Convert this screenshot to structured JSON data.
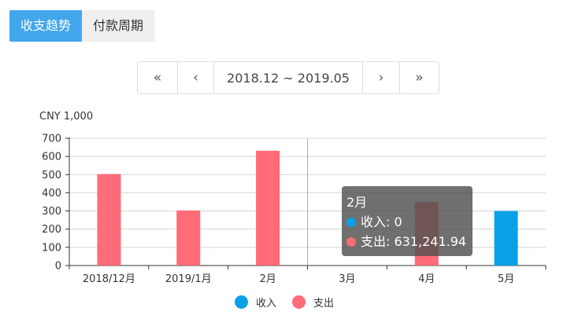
{
  "tabs": [
    {
      "label": "收支趋势",
      "active": true
    },
    {
      "label": "付款周期",
      "active": false
    }
  ],
  "pager": {
    "first": "«",
    "prev": "‹",
    "range": "2018.12 ~ 2019.05",
    "next": "›",
    "last": "»"
  },
  "chart_data": {
    "type": "bar",
    "unit_label": "CNY 1,000",
    "categories": [
      "2018/12月",
      "2019/1月",
      "2月",
      "3月",
      "4月",
      "5月"
    ],
    "series": [
      {
        "name": "收入",
        "color": "#0aa0e8",
        "values": [
          0,
          0,
          0,
          0,
          0,
          300
        ]
      },
      {
        "name": "支出",
        "color": "#ff6b77",
        "values": [
          503,
          303,
          631.24194,
          0,
          350,
          0
        ]
      }
    ],
    "ylim": [
      0,
      700
    ],
    "yticks": [
      0,
      100,
      200,
      300,
      400,
      500,
      600,
      700
    ],
    "grid": true,
    "legend_position": "bottom",
    "hover_category_index": 2,
    "tooltip": {
      "title": "2月",
      "rows": [
        {
          "label": "收入: 0",
          "color": "#0aa0e8"
        },
        {
          "label": "支出: 631,241.94",
          "color": "#ff6b77"
        }
      ]
    }
  }
}
